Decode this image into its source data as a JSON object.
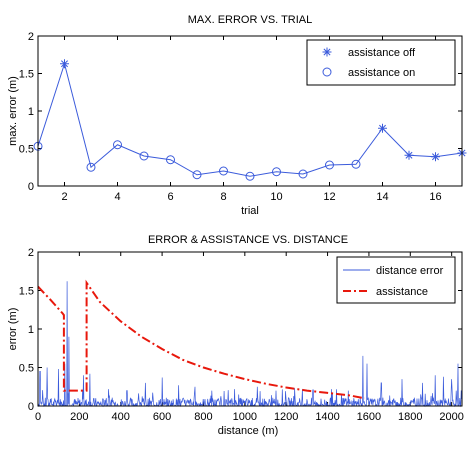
{
  "chart_data": [
    {
      "type": "line",
      "title": "MAX. ERROR VS. TRIAL",
      "xlabel": "trial",
      "ylabel": "max. error (m)",
      "xlim": [
        1,
        17
      ],
      "ylim": [
        0,
        2
      ],
      "xticks": [
        2,
        4,
        6,
        8,
        10,
        12,
        14,
        16
      ],
      "yticks": [
        0,
        0.5,
        1,
        1.5,
        2
      ],
      "ytick_labels": [
        "0",
        "0.5",
        "1",
        "1.5",
        "2"
      ],
      "line_color": "#3b5bdb",
      "legend_position": "top-right",
      "legend": [
        {
          "label": "assistance off",
          "marker": "asterisk"
        },
        {
          "label": "assistance on",
          "marker": "circle"
        }
      ],
      "series": [
        {
          "x": [
            1,
            2,
            3,
            4,
            5,
            6,
            7,
            8,
            9,
            10,
            11,
            12,
            13,
            14,
            15,
            16,
            17
          ],
          "y": [
            0.53,
            1.63,
            0.25,
            0.55,
            0.4,
            0.35,
            0.15,
            0.2,
            0.13,
            0.19,
            0.16,
            0.28,
            0.29,
            0.77,
            0.41,
            0.39,
            0.44
          ],
          "markers": [
            "circle",
            "asterisk",
            "circle",
            "circle",
            "circle",
            "circle",
            "circle",
            "circle",
            "circle",
            "circle",
            "circle",
            "circle",
            "circle",
            "asterisk",
            "asterisk",
            "asterisk",
            "asterisk"
          ]
        }
      ]
    },
    {
      "type": "line",
      "title": "ERROR & ASSISTANCE VS. DISTANCE",
      "xlabel": "distance (m)",
      "ylabel": "error (m)",
      "xlim": [
        0,
        2050
      ],
      "ylim": [
        0,
        2
      ],
      "xticks": [
        0,
        200,
        400,
        600,
        800,
        1000,
        1200,
        1400,
        1600,
        1800,
        2000
      ],
      "yticks": [
        0,
        0.5,
        1,
        1.5,
        2
      ],
      "ytick_labels": [
        "0",
        "0.5",
        "1",
        "1.5",
        "2"
      ],
      "legend_position": "top-right",
      "legend": [
        {
          "label": "distance error",
          "color": "#3b5bdb",
          "style": "solid"
        },
        {
          "label": "assistance",
          "color": "#e8180c",
          "style": "dashdot"
        }
      ],
      "series": [
        {
          "style": "noise",
          "color": "#3b5bdb",
          "note_points_spikes": [
            [
              140,
              1.62
            ],
            [
              150,
              0.9
            ],
            [
              130,
              0.55
            ],
            [
              45,
              0.5
            ],
            [
              10,
              0.45
            ],
            [
              100,
              0.48
            ],
            [
              220,
              0.4
            ],
            [
              250,
              0.42
            ],
            [
              340,
              0.22
            ],
            [
              430,
              0.2
            ],
            [
              520,
              0.3
            ],
            [
              600,
              0.37
            ],
            [
              680,
              0.27
            ],
            [
              760,
              0.25
            ],
            [
              840,
              0.2
            ],
            [
              950,
              0.22
            ],
            [
              1060,
              0.25
            ],
            [
              1150,
              0.2
            ],
            [
              1240,
              0.23
            ],
            [
              1330,
              0.21
            ],
            [
              1420,
              0.22
            ],
            [
              1500,
              0.2
            ],
            [
              1570,
              0.65
            ],
            [
              1590,
              0.55
            ],
            [
              1660,
              0.3
            ],
            [
              1760,
              0.35
            ],
            [
              1860,
              0.3
            ],
            [
              1920,
              0.4
            ],
            [
              1960,
              0.38
            ],
            [
              2000,
              0.35
            ],
            [
              2030,
              0.55
            ]
          ]
        },
        {
          "name": "assistance",
          "color": "#e8180c",
          "x": [
            0,
            60,
            120,
            125,
            125,
            128,
            235,
            235,
            300,
            400,
            500,
            600,
            700,
            800,
            900,
            1000,
            1100,
            1200,
            1300,
            1400,
            1500,
            1580
          ],
          "y": [
            1.55,
            1.38,
            1.2,
            1.18,
            0.2,
            0.2,
            0.2,
            1.6,
            1.35,
            1.1,
            0.9,
            0.74,
            0.6,
            0.5,
            0.42,
            0.35,
            0.29,
            0.24,
            0.2,
            0.17,
            0.14,
            0.1
          ]
        }
      ]
    }
  ]
}
